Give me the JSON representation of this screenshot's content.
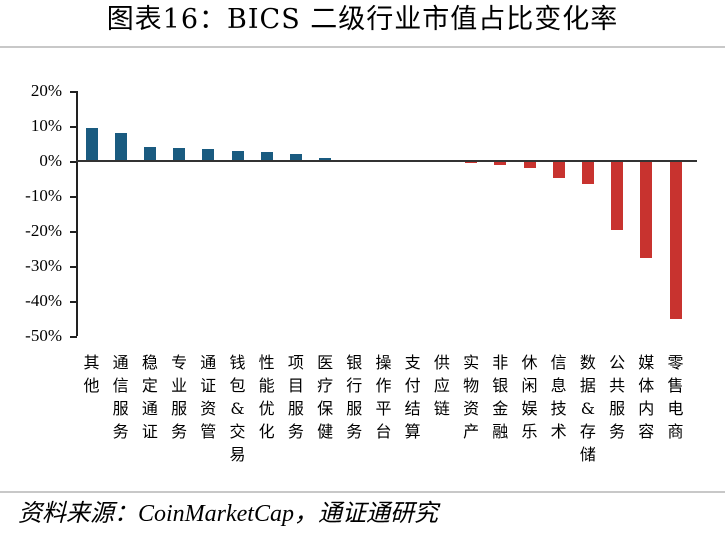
{
  "title": "图表16：BICS 二级行业市值占比变化率",
  "source": "资料来源：CoinMarketCap，通证通研究",
  "colors": {
    "positive": "#1a5b80",
    "negative": "#c8332f",
    "axis": "#222222",
    "rule": "#c8c8c8"
  },
  "chart_data": {
    "type": "bar",
    "title": "图表16：BICS 二级行业市值占比变化率",
    "xlabel": "",
    "ylabel": "",
    "ylim": [
      -50,
      20
    ],
    "yticks": [
      "20%",
      "10%",
      "0%",
      "-10%",
      "-20%",
      "-30%",
      "-40%",
      "-50%"
    ],
    "grid": false,
    "legend": null,
    "categories": [
      "其他",
      "通信服务",
      "稳定通证",
      "专业服务",
      "通证资管",
      "钱包&交易",
      "性能优化",
      "项目服务",
      "医疗保健",
      "银行服务",
      "操作平台",
      "支付结算",
      "供应链",
      "实物资产",
      "非银金融",
      "休闲娱乐",
      "信息技术",
      "数据&存储",
      "公共服务",
      "媒体内容",
      "零售电商"
    ],
    "values": [
      9.5,
      8.0,
      4.1,
      3.7,
      3.3,
      2.9,
      2.5,
      2.1,
      0.9,
      0.4,
      0.3,
      0.3,
      0.1,
      -0.6,
      -1.1,
      -2.1,
      -4.9,
      -6.6,
      -19.7,
      -27.6,
      -45.1
    ],
    "unit": "%"
  }
}
